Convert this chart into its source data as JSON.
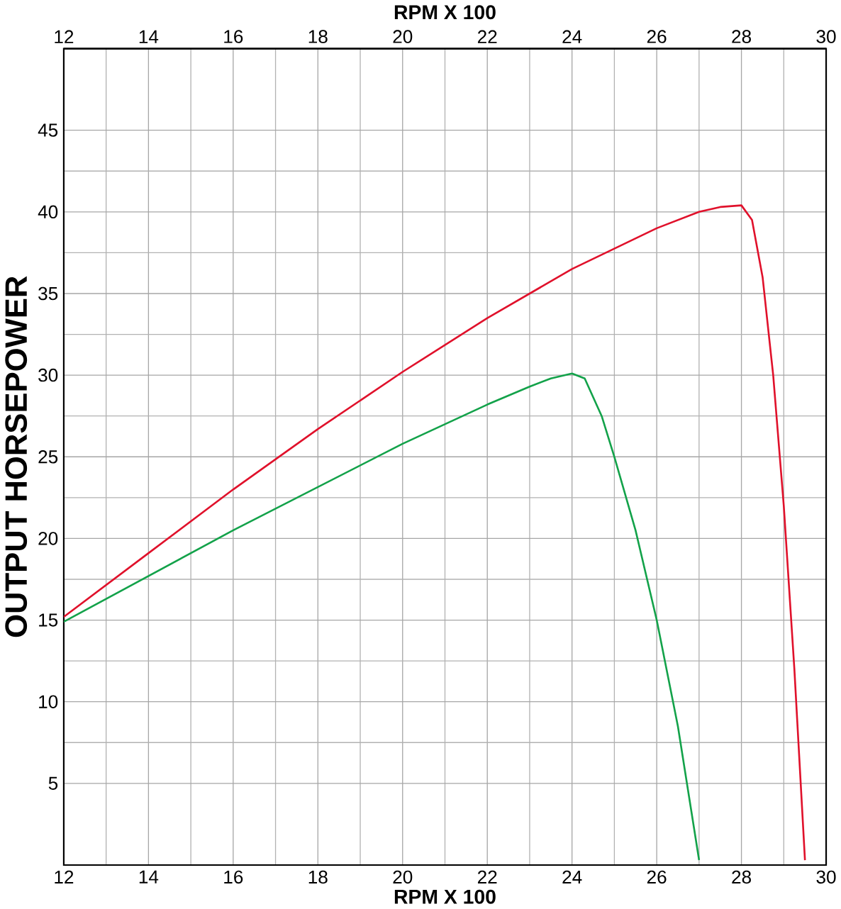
{
  "chart_data": {
    "type": "line",
    "xlabel": "RPM X 100",
    "x2label": "RPM X 100",
    "ylabel": "OUTPUT HORSEPOWER",
    "xlim": [
      12,
      30
    ],
    "xticks": [
      12,
      14,
      16,
      18,
      20,
      22,
      24,
      26,
      28,
      30
    ],
    "x2lim": [
      12,
      30
    ],
    "x2ticks": [
      12,
      14,
      16,
      18,
      20,
      22,
      24,
      26,
      28,
      30
    ],
    "ylim": [
      0,
      50
    ],
    "yticks": [
      5,
      10,
      15,
      20,
      25,
      30,
      35,
      40,
      45
    ],
    "grid": true,
    "legend": false,
    "marker": "none",
    "line_style": "solid",
    "series": [
      {
        "color": "#e0112b",
        "x": [
          12,
          14,
          16,
          18,
          20,
          22,
          24,
          26,
          27,
          27.5,
          28,
          28.25,
          28.5,
          28.75,
          29,
          29.25,
          29.5
        ],
        "values": [
          15.2,
          19.1,
          23.0,
          26.7,
          30.2,
          33.5,
          36.5,
          39.0,
          40.0,
          40.3,
          40.4,
          39.5,
          36,
          30,
          22,
          12,
          0.3
        ]
      },
      {
        "color": "#13a24a",
        "x": [
          12,
          16,
          20,
          22,
          23,
          23.5,
          24,
          24.3,
          24.7,
          25,
          25.5,
          26,
          26.5,
          27
        ],
        "values": [
          14.9,
          20.5,
          25.8,
          28.2,
          29.3,
          29.8,
          30.1,
          29.8,
          27.5,
          25,
          20.5,
          15,
          8.5,
          0.3
        ]
      }
    ]
  }
}
